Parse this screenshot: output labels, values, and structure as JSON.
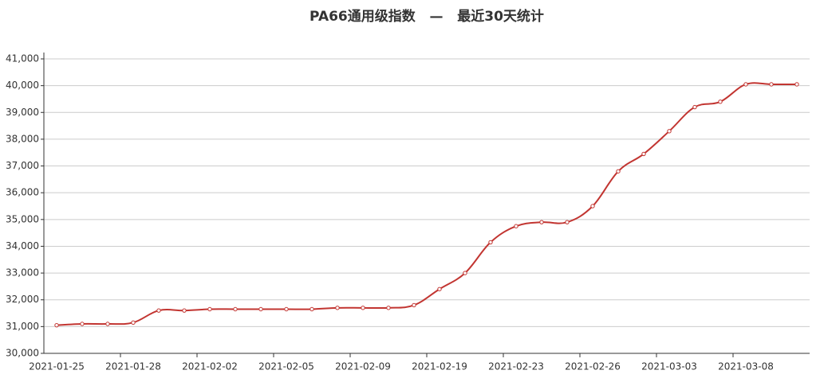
{
  "chart_data": {
    "type": "line",
    "title": "PA66通用级指数   —   最近30天统计",
    "categories": [
      "2021-01-25",
      null,
      null,
      "2021-01-28",
      null,
      null,
      "2021-02-02",
      null,
      null,
      "2021-02-05",
      null,
      null,
      "2021-02-09",
      null,
      null,
      "2021-02-19",
      null,
      null,
      "2021-02-23",
      null,
      null,
      "2021-02-26",
      null,
      null,
      "2021-03-03",
      null,
      null,
      "2021-03-08",
      null,
      null
    ],
    "series": [
      {
        "color": "#c23531",
        "values": [
          31050,
          31100,
          31100,
          31150,
          31600,
          31600,
          31650,
          31650,
          31650,
          31650,
          31650,
          31700,
          31700,
          31700,
          31800,
          32400,
          33000,
          34150,
          34750,
          34900,
          34900,
          35500,
          36800,
          37450,
          38300,
          39200,
          39400,
          40050,
          40050,
          40050
        ]
      }
    ],
    "ylim": [
      30000,
      41000
    ],
    "yticks": [
      {
        "value": 30000,
        "label": "30,000"
      },
      {
        "value": 31000,
        "label": "31,000"
      },
      {
        "value": 32000,
        "label": "32,000"
      },
      {
        "value": 33000,
        "label": "33,000"
      },
      {
        "value": 34000,
        "label": "34,000"
      },
      {
        "value": 35000,
        "label": "35,000"
      },
      {
        "value": 36000,
        "label": "36,000"
      },
      {
        "value": 37000,
        "label": "37,000"
      },
      {
        "value": 38000,
        "label": "38,000"
      },
      {
        "value": 39000,
        "label": "39,000"
      },
      {
        "value": 40000,
        "label": "40,000"
      },
      {
        "value": 41000,
        "label": "41,000"
      }
    ],
    "grid": true
  }
}
